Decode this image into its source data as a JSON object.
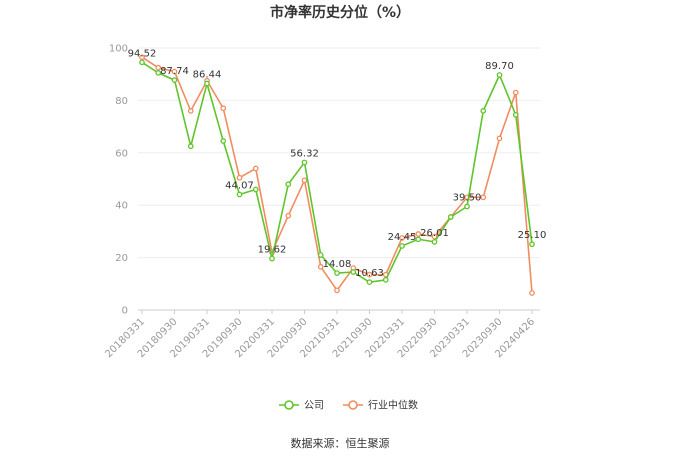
{
  "chart_data": {
    "type": "line",
    "title": "市净率历史分位（%）",
    "ylim": [
      0,
      100
    ],
    "yticks": [
      0,
      20,
      40,
      60,
      80,
      100
    ],
    "grid": true,
    "legend_position": "bottom",
    "x": [
      "20180331",
      "20180630",
      "20180930",
      "20181231",
      "20190331",
      "20190630",
      "20190930",
      "20191231",
      "20200331",
      "20200630",
      "20200930",
      "20201231",
      "20210331",
      "20210630",
      "20210930",
      "20211231",
      "20220331",
      "20220630",
      "20220930",
      "20221231",
      "20230331",
      "20230630",
      "20230930",
      "20231231",
      "20240426"
    ],
    "x_tick_labels": [
      "20180331",
      "20180930",
      "20190331",
      "20190930",
      "20200331",
      "20200930",
      "20210331",
      "20210930",
      "20220331",
      "20220930",
      "20230331",
      "20230930",
      "20240426"
    ],
    "series": [
      {
        "name": "公司",
        "color": "#5fc52a",
        "values": [
          94.52,
          90.5,
          87.74,
          62.5,
          86.44,
          64.5,
          44.07,
          46.0,
          19.62,
          48.0,
          56.32,
          21.0,
          14.08,
          14.5,
          10.63,
          11.5,
          24.45,
          27.0,
          26.01,
          35.5,
          39.5,
          76.0,
          89.7,
          74.5,
          25.1
        ]
      },
      {
        "name": "行业中位数",
        "color": "#f28c5f",
        "values": [
          96.5,
          92.5,
          91.0,
          76.0,
          87.5,
          77.0,
          50.5,
          54.0,
          22.0,
          36.0,
          49.5,
          16.5,
          7.5,
          16.0,
          13.5,
          13.5,
          27.5,
          29.0,
          28.0,
          35.5,
          43.0,
          43.0,
          65.5,
          83.0,
          6.5
        ]
      }
    ],
    "data_labels": [
      {
        "series": 0,
        "index": 0,
        "text": "94.52"
      },
      {
        "series": 0,
        "index": 2,
        "text": "87.74"
      },
      {
        "series": 0,
        "index": 4,
        "text": "86.44"
      },
      {
        "series": 0,
        "index": 6,
        "text": "44.07"
      },
      {
        "series": 0,
        "index": 8,
        "text": "19.62"
      },
      {
        "series": 0,
        "index": 10,
        "text": "56.32"
      },
      {
        "series": 0,
        "index": 12,
        "text": "14.08"
      },
      {
        "series": 0,
        "index": 14,
        "text": "10.63"
      },
      {
        "series": 0,
        "index": 16,
        "text": "24.45"
      },
      {
        "series": 0,
        "index": 18,
        "text": "26.01"
      },
      {
        "series": 0,
        "index": 20,
        "text": "39.50"
      },
      {
        "series": 0,
        "index": 22,
        "text": "89.70"
      },
      {
        "series": 0,
        "index": 24,
        "text": "25.10"
      }
    ]
  },
  "footer": {
    "source": "数据来源：恒生聚源"
  }
}
